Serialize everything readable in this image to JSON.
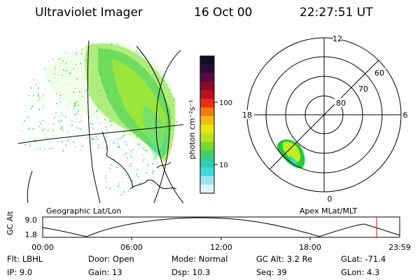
{
  "header": {
    "title": "Ultraviolet Imager",
    "date": "16 Oct 00",
    "time": "22:27:51 UT"
  },
  "colorbar": {
    "unit_label": "photon cm⁻²s⁻¹",
    "tick_labels": [
      "100",
      "10"
    ],
    "colors_top_to_bottom": [
      "#160a28",
      "#2a0a3c",
      "#5a0a40",
      "#8c0a28",
      "#c0101e",
      "#e83010",
      "#f07a10",
      "#f5b80e",
      "#e6e614",
      "#b4e61e",
      "#7ad82a",
      "#3ccf6e",
      "#2ed0b0",
      "#40d8e0",
      "#9ee4ee",
      "#dff2f6"
    ]
  },
  "geographic_panel": {
    "label": "Geographic Lat/Lon",
    "aurora_colors": [
      "#22c83c",
      "#7ade28",
      "#c0ee1e",
      "#33d6c8"
    ]
  },
  "apex_panel": {
    "label": "Apex MLat/MLT",
    "mlt_labels": {
      "top": "12",
      "left": "18",
      "right": "6",
      "bottom": "0"
    },
    "mlat_labels": [
      "60",
      "70",
      "80"
    ]
  },
  "gc_alt_plot": {
    "ylabel": "GC Alt",
    "y_ticks": [
      "9.0",
      "1.8"
    ],
    "x_ticks": [
      "00:00",
      "06:00",
      "12:00",
      "18:00",
      "23:59"
    ],
    "current_time_marker_color": "#c81010"
  },
  "params": {
    "flt": "Flt: LBHL",
    "door": "Door: Open",
    "mode": "Mode: Normal",
    "gc_alt": "GC Alt: 3.2 Re",
    "glat": "GLat: -71.4",
    "ip": "IP:  9.0",
    "gain": "Gain: 13",
    "dsp": "Dsp:   10.3",
    "seq": "Seq: 39",
    "glon": "GLon:   4.3"
  }
}
